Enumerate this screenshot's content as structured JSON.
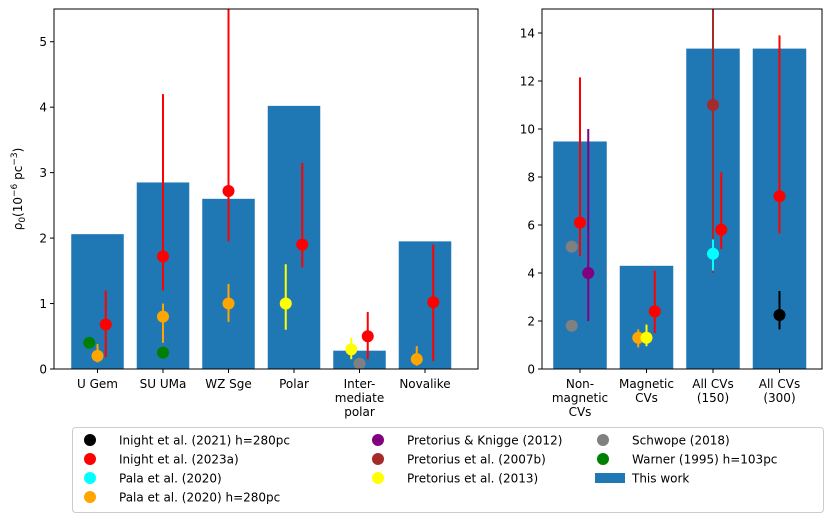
{
  "colors": {
    "bar": "#1f77b4",
    "Inight2021": "#000000",
    "Inight2023a": "#ff0000",
    "Pala2020": "#00ffff",
    "Pala2020h": "#ffa500",
    "PK2012": "#800080",
    "P2007b": "#a52a2a",
    "P2013": "#ffff00",
    "Schwope2018": "#808080",
    "Warner1995": "#008000"
  },
  "chart_data": [
    {
      "type": "bar",
      "ylabel": "ρ0(10−6 pc−3)",
      "ylabel_parts": {
        "rho": "ρ",
        "sub": "0",
        "open": "(10",
        "exp1": "−6",
        "unit": " pc",
        "exp2": "−3",
        "close": ")"
      },
      "ylim": [
        0,
        5.5
      ],
      "yticks": [
        "0",
        "1",
        "2",
        "3",
        "4",
        "5"
      ],
      "categories": [
        {
          "lines": [
            "U Gem"
          ]
        },
        {
          "lines": [
            "SU UMa"
          ]
        },
        {
          "lines": [
            "WZ Sge"
          ]
        },
        {
          "lines": [
            "Polar"
          ]
        },
        {
          "lines": [
            "Inter-",
            "mediate",
            "polar"
          ]
        },
        {
          "lines": [
            "Novalike"
          ]
        }
      ],
      "bars": [
        2.06,
        2.85,
        2.6,
        4.02,
        0.28,
        1.95
      ],
      "points": [
        {
          "cat": 0,
          "offset": 0.25,
          "y": 0.68,
          "lo": 0.18,
          "hi": 1.2,
          "src": "Inight2023a"
        },
        {
          "cat": 0,
          "offset": 0.0,
          "y": 0.2,
          "lo": 0.1,
          "hi": 0.38,
          "src": "Pala2020h"
        },
        {
          "cat": 0,
          "offset": -0.25,
          "y": 0.4,
          "src": "Warner1995"
        },
        {
          "cat": 1,
          "offset": 0.0,
          "y": 1.72,
          "lo": 1.2,
          "hi": 4.2,
          "src": "Inight2023a"
        },
        {
          "cat": 1,
          "offset": 0.0,
          "y": 0.8,
          "lo": 0.4,
          "hi": 1.0,
          "src": "Pala2020h"
        },
        {
          "cat": 1,
          "offset": 0.0,
          "y": 0.25,
          "src": "Warner1995"
        },
        {
          "cat": 2,
          "offset": 0.0,
          "y": 2.72,
          "lo": 1.95,
          "hi": 5.5,
          "src": "Inight2023a"
        },
        {
          "cat": 2,
          "offset": 0.0,
          "y": 1.0,
          "lo": 0.72,
          "hi": 1.3,
          "src": "Pala2020h"
        },
        {
          "cat": 3,
          "offset": 0.25,
          "y": 1.9,
          "lo": 1.55,
          "hi": 3.15,
          "src": "Inight2023a"
        },
        {
          "cat": 3,
          "offset": -0.25,
          "y": 1.0,
          "lo": 0.6,
          "hi": 1.6,
          "src": "P2013"
        },
        {
          "cat": 4,
          "offset": 0.25,
          "y": 0.5,
          "lo": 0.15,
          "hi": 0.87,
          "src": "Inight2023a"
        },
        {
          "cat": 4,
          "offset": -0.25,
          "y": 0.3,
          "lo": 0.15,
          "hi": 0.48,
          "src": "P2013"
        },
        {
          "cat": 4,
          "offset": 0.0,
          "y": 0.08,
          "src": "Schwope2018"
        },
        {
          "cat": 5,
          "offset": 0.25,
          "y": 1.02,
          "lo": 0.12,
          "hi": 1.9,
          "src": "Inight2023a"
        },
        {
          "cat": 5,
          "offset": -0.25,
          "y": 0.15,
          "lo": 0.05,
          "hi": 0.35,
          "src": "Pala2020h"
        }
      ]
    },
    {
      "type": "bar",
      "ylim": [
        0,
        15
      ],
      "yticks": [
        "0",
        "2",
        "4",
        "6",
        "8",
        "10",
        "12",
        "14"
      ],
      "categories": [
        {
          "lines": [
            "Non-",
            "magnetic",
            "CVs"
          ]
        },
        {
          "lines": [
            "Magnetic",
            "CVs"
          ]
        },
        {
          "lines": [
            "All CVs",
            "(150)"
          ]
        },
        {
          "lines": [
            "All CVs",
            "(300)"
          ]
        }
      ],
      "bars": [
        9.48,
        4.3,
        13.35,
        13.35
      ],
      "points": [
        {
          "cat": 0,
          "offset": -0.25,
          "y": 5.1,
          "src": "Schwope2018"
        },
        {
          "cat": 0,
          "offset": -0.25,
          "y": 1.8,
          "src": "Schwope2018"
        },
        {
          "cat": 0,
          "offset": 0.0,
          "y": 6.1,
          "lo": 4.7,
          "hi": 12.15,
          "src": "Inight2023a"
        },
        {
          "cat": 0,
          "offset": 0.25,
          "y": 4.0,
          "lo": 2.0,
          "hi": 10.0,
          "src": "PK2012"
        },
        {
          "cat": 1,
          "offset": -0.25,
          "y": 1.3,
          "lo": 0.9,
          "hi": 1.65,
          "src": "Pala2020h"
        },
        {
          "cat": 1,
          "offset": 0.0,
          "y": 1.3,
          "lo": 0.95,
          "hi": 1.85,
          "src": "P2013"
        },
        {
          "cat": 1,
          "offset": 0.25,
          "y": 2.4,
          "lo": 1.5,
          "hi": 4.1,
          "src": "Inight2023a"
        },
        {
          "cat": 2,
          "offset": 0.0,
          "y": 11.0,
          "lo": 4.0,
          "hi": 15.0,
          "src": "P2007b"
        },
        {
          "cat": 2,
          "offset": 0.0,
          "y": 4.8,
          "lo": 4.1,
          "hi": 5.4,
          "src": "Pala2020"
        },
        {
          "cat": 2,
          "offset": 0.25,
          "y": 5.8,
          "lo": 5.0,
          "hi": 8.2,
          "src": "Inight2023a"
        },
        {
          "cat": 3,
          "offset": 0.0,
          "y": 7.2,
          "lo": 5.65,
          "hi": 13.9,
          "src": "Inight2023a"
        },
        {
          "cat": 3,
          "offset": 0.0,
          "y": 2.25,
          "lo": 1.65,
          "hi": 3.25,
          "src": "Inight2021"
        }
      ]
    }
  ],
  "legend": {
    "columns": [
      [
        {
          "label": "Inight et al. (2021) h=280pc",
          "src": "Inight2021",
          "kind": "dot"
        },
        {
          "label": "Inight et al. (2023a)",
          "src": "Inight2023a",
          "kind": "dot"
        },
        {
          "label": "Pala et al. (2020)",
          "src": "Pala2020",
          "kind": "dot"
        },
        {
          "label": "Pala et al. (2020) h=280pc",
          "src": "Pala2020h",
          "kind": "dot"
        }
      ],
      [
        {
          "label": "Pretorius & Knigge (2012)",
          "src": "PK2012",
          "kind": "dot"
        },
        {
          "label": "Pretorius et al. (2007b)",
          "src": "P2007b",
          "kind": "dot"
        },
        {
          "label": "Pretorius et al. (2013)",
          "src": "P2013",
          "kind": "dot"
        }
      ],
      [
        {
          "label": "Schwope (2018)",
          "src": "Schwope2018",
          "kind": "dot"
        },
        {
          "label": "Warner (1995) h=103pc",
          "src": "Warner1995",
          "kind": "dot"
        },
        {
          "label": "This work",
          "src": "bar",
          "kind": "patch"
        }
      ]
    ]
  }
}
